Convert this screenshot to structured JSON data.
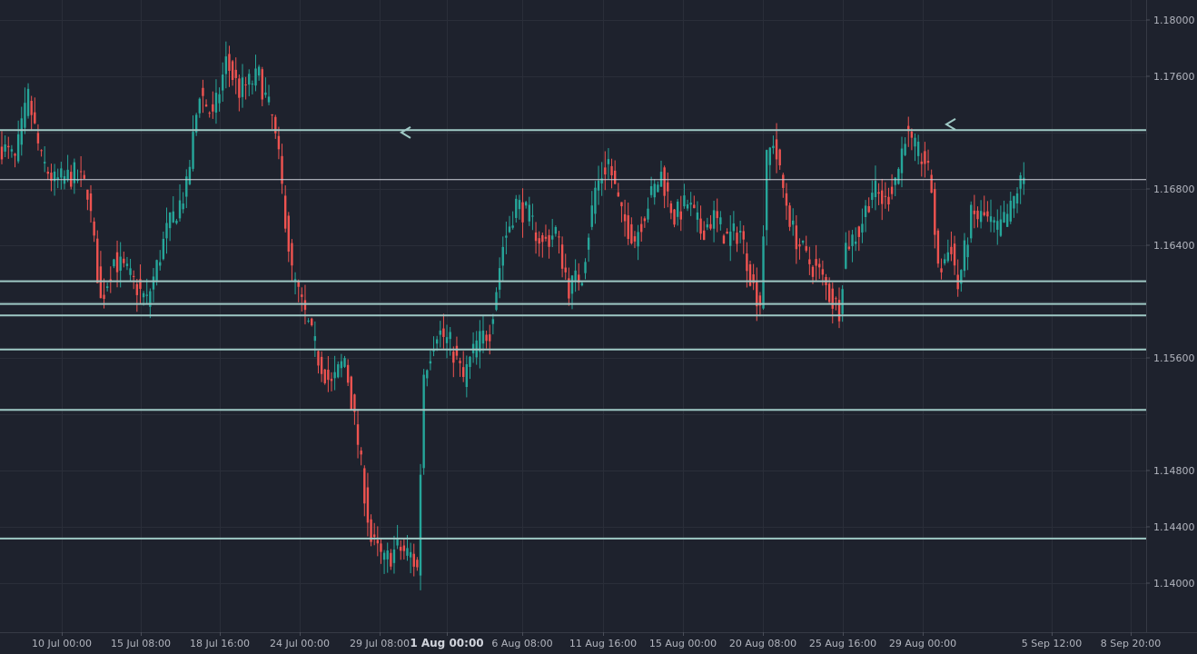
{
  "chart_data": {
    "type": "candlestick",
    "symbol_precision": 5,
    "ylim": [
      1.1378,
      1.181
    ],
    "y_ticks": [
      "1.18000",
      "1.17600",
      "1.16800",
      "1.16400",
      "1.15600",
      "1.14800",
      "1.14400",
      "1.14000"
    ],
    "x_ticks": [
      {
        "label": "10 Jul 00:00",
        "bold": false
      },
      {
        "label": "15 Jul 08:00",
        "bold": false
      },
      {
        "label": "18 Jul 16:00",
        "bold": false
      },
      {
        "label": "24 Jul 00:00",
        "bold": false
      },
      {
        "label": "29 Jul 08:00",
        "bold": false
      },
      {
        "label": "1 Aug 00:00",
        "bold": true
      },
      {
        "label": "6 Aug 08:00",
        "bold": false
      },
      {
        "label": "11 Aug 16:00",
        "bold": false
      },
      {
        "label": "15 Aug 00:00",
        "bold": false
      },
      {
        "label": "20 Aug 08:00",
        "bold": false
      },
      {
        "label": "25 Aug 16:00",
        "bold": false
      },
      {
        "label": "29 Aug 00:00",
        "bold": false
      },
      {
        "label": "5 Sep 12:00",
        "bold": false
      },
      {
        "label": "8 Sep 20:00",
        "bold": false
      }
    ],
    "horizontal_levels": [
      {
        "label": "1.17218",
        "value": 1.17218
      },
      {
        "label": "1.16144",
        "value": 1.16144
      },
      {
        "label": "1.15983",
        "value": 1.15983
      },
      {
        "label": "1.15902",
        "value": 1.15902
      },
      {
        "label": "1.15660",
        "value": 1.1566
      },
      {
        "label": "1.15231",
        "value": 1.15231
      },
      {
        "label": "1.14317",
        "value": 1.14317
      }
    ],
    "price_tags": [
      {
        "label": "1.16867",
        "value": 1.16867,
        "kind": "crosshair"
      },
      {
        "label": "1.16866",
        "value": 1.16866,
        "kind": "last"
      }
    ],
    "anchors": [
      [
        0,
        1.171
      ],
      [
        4,
        1.17
      ],
      [
        8,
        1.1745
      ],
      [
        12,
        1.17
      ],
      [
        16,
        1.1685
      ],
      [
        22,
        1.169
      ],
      [
        26,
        1.168
      ],
      [
        30,
        1.16
      ],
      [
        34,
        1.163
      ],
      [
        38,
        1.162
      ],
      [
        44,
        1.16
      ],
      [
        50,
        1.165
      ],
      [
        56,
        1.168
      ],
      [
        60,
        1.175
      ],
      [
        64,
        1.173
      ],
      [
        68,
        1.177
      ],
      [
        72,
        1.175
      ],
      [
        78,
        1.176
      ],
      [
        82,
        1.173
      ],
      [
        84,
        1.17
      ],
      [
        88,
        1.162
      ],
      [
        92,
        1.159
      ],
      [
        96,
        1.156
      ],
      [
        100,
        1.154
      ],
      [
        104,
        1.156
      ],
      [
        108,
        1.15
      ],
      [
        112,
        1.143
      ],
      [
        116,
        1.1415
      ],
      [
        120,
        1.1425
      ],
      [
        124,
        1.142
      ],
      [
        126,
        1.141
      ],
      [
        128,
        1.155
      ],
      [
        132,
        1.158
      ],
      [
        136,
        1.157
      ],
      [
        140,
        1.1545
      ],
      [
        144,
        1.157
      ],
      [
        148,
        1.158
      ],
      [
        152,
        1.164
      ],
      [
        156,
        1.167
      ],
      [
        160,
        1.166
      ],
      [
        164,
        1.164
      ],
      [
        168,
        1.165
      ],
      [
        172,
        1.161
      ],
      [
        176,
        1.162
      ],
      [
        180,
        1.168
      ],
      [
        184,
        1.17
      ],
      [
        188,
        1.166
      ],
      [
        192,
        1.1645
      ],
      [
        196,
        1.167
      ],
      [
        200,
        1.169
      ],
      [
        204,
        1.166
      ],
      [
        208,
        1.167
      ],
      [
        212,
        1.165
      ],
      [
        216,
        1.166
      ],
      [
        220,
        1.1645
      ],
      [
        224,
        1.165
      ],
      [
        228,
        1.161
      ],
      [
        230,
        1.16
      ],
      [
        232,
        1.17
      ],
      [
        234,
        1.1715
      ],
      [
        236,
        1.169
      ],
      [
        240,
        1.165
      ],
      [
        244,
        1.163
      ],
      [
        248,
        1.162
      ],
      [
        252,
        1.16
      ],
      [
        254,
        1.1595
      ],
      [
        256,
        1.164
      ],
      [
        260,
        1.165
      ],
      [
        264,
        1.168
      ],
      [
        268,
        1.167
      ],
      [
        272,
        1.1695
      ],
      [
        274,
        1.172
      ],
      [
        276,
        1.171
      ],
      [
        280,
        1.17
      ],
      [
        282,
        1.168
      ],
      [
        284,
        1.162
      ],
      [
        288,
        1.164
      ],
      [
        290,
        1.161
      ],
      [
        294,
        1.166
      ],
      [
        298,
        1.166
      ],
      [
        302,
        1.165
      ],
      [
        306,
        1.1665
      ],
      [
        308,
        1.168
      ],
      [
        310,
        1.1688
      ]
    ]
  }
}
